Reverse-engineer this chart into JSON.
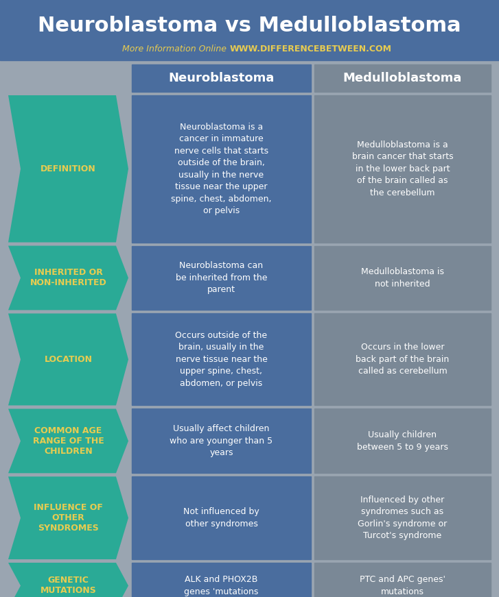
{
  "title": "Neuroblastoma vs Medulloblastoma",
  "subtitle_plain": "More Information Online",
  "subtitle_url": "WWW.DIFFERENCEBETWEEN.COM",
  "col1_header": "Neuroblastoma",
  "col2_header": "Medulloblastoma",
  "bg_color": "#9aa5b1",
  "title_bg_color": "#4a6d9e",
  "col1_bg_color": "#4a6d9e",
  "col2_bg_color": "#7a8896",
  "arrow_color": "#2aaa96",
  "arrow_text_color": "#e8cc50",
  "title_color": "#ffffff",
  "col_header_text_color": "#ffffff",
  "cell_text_color": "#ffffff",
  "subtitle_plain_color": "#e8cc50",
  "subtitle_url_color": "#e8cc50",
  "rows": [
    {
      "label": "DEFINITION",
      "col1": "Neuroblastoma is a\ncancer in immature\nnerve cells that starts\noutside of the brain,\nusually in the nerve\ntissue near the upper\nspine, chest, abdomen,\nor pelvis",
      "col2": "Medulloblastoma is a\nbrain cancer that starts\nin the lower back part\nof the brain called as\nthe cerebellum"
    },
    {
      "label": "INHERITED OR\nNON-INHERITED",
      "col1": "Neuroblastoma can\nbe inherited from the\nparent",
      "col2": "Medulloblastoma is\nnot inherited"
    },
    {
      "label": "LOCATION",
      "col1": "Occurs outside of the\nbrain, usually in the\nnerve tissue near the\nupper spine, chest,\nabdomen, or pelvis",
      "col2": "Occurs in the lower\nback part of the brain\ncalled as cerebellum"
    },
    {
      "label": "COMMON AGE\nRANGE OF THE\nCHILDREN",
      "col1": "Usually affect children\nwho are younger than 5\nyears",
      "col2": "Usually children\nbetween 5 to 9 years"
    },
    {
      "label": "INFLUENCE OF\nOTHER\nSYNDROMES",
      "col1": "Not influenced by\nother syndromes",
      "col2": "Influenced by other\nsyndromes such as\nGorlin's syndrome or\nTurcot's syndrome"
    },
    {
      "label": "GENETIC\nMUTATIONS",
      "col1": "ALK and PHOX2B\ngenes 'mutations",
      "col2": "PTC and APC genes'\nmutations"
    }
  ],
  "fig_w": 7.27,
  "fig_h": 8.71,
  "dpi": 100
}
